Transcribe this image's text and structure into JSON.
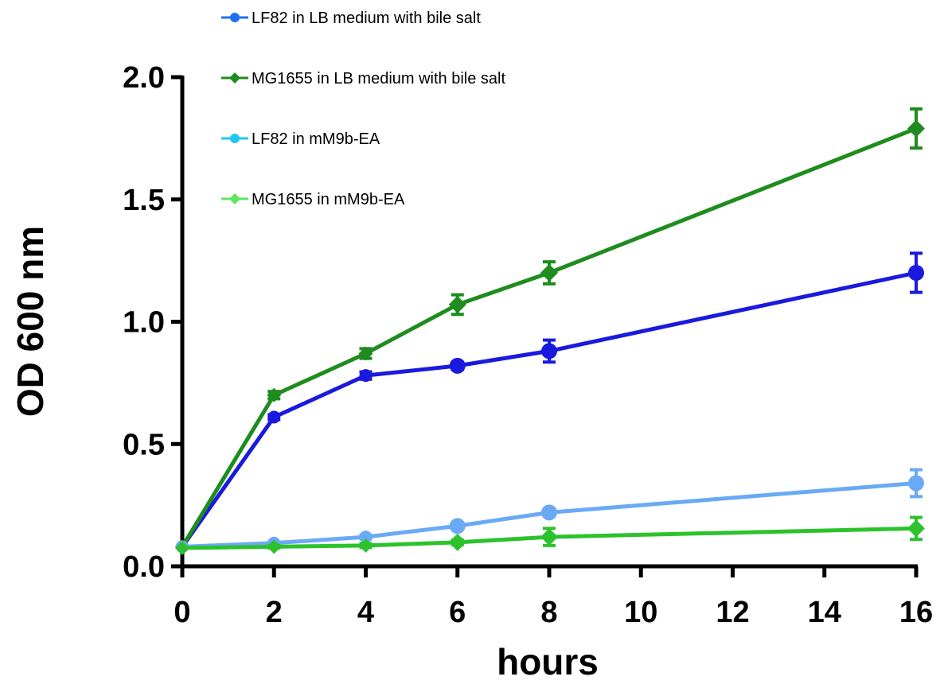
{
  "chart_data": {
    "type": "line",
    "title": "",
    "xlabel": "hours",
    "ylabel": "OD 600 nm",
    "xlim": [
      0,
      16
    ],
    "ylim": [
      0,
      2.0
    ],
    "x_ticks": [
      0,
      2,
      4,
      6,
      8,
      10,
      12,
      14,
      16
    ],
    "x_tick_labels": [
      "0",
      "2",
      "4",
      "6",
      "8",
      "10",
      "12",
      "14",
      "16"
    ],
    "y_ticks": [
      0,
      0.5,
      1.0,
      1.5,
      2.0
    ],
    "y_tick_labels": [
      "0.0",
      "0.5",
      "1.0",
      "1.5",
      "2.0"
    ],
    "grid": false,
    "legend_position": "top-left",
    "x": [
      0,
      2,
      4,
      6,
      8,
      16
    ],
    "series": [
      {
        "name": "LF82 in LB medium with bile salt",
        "color": "#1a1adf",
        "legend_color": "#1e6ff0",
        "marker": "circle",
        "values": [
          0.08,
          0.61,
          0.78,
          0.82,
          0.88,
          1.2
        ],
        "errors": [
          0.0,
          0.01,
          0.015,
          0.015,
          0.045,
          0.08
        ]
      },
      {
        "name": "MG1655 in LB medium with bile salt",
        "color": "#1e8c1e",
        "legend_color": "#1e8c1e",
        "marker": "diamond",
        "values": [
          0.08,
          0.7,
          0.87,
          1.07,
          1.2,
          1.79
        ],
        "errors": [
          0.0,
          0.015,
          0.02,
          0.04,
          0.045,
          0.08
        ]
      },
      {
        "name": "LF82 in mM9b-EA",
        "color": "#6aaaf5",
        "legend_color": "#1ec8f0",
        "marker": "circle",
        "values": [
          0.08,
          0.095,
          0.12,
          0.165,
          0.22,
          0.34
        ],
        "errors": [
          0.0,
          0.005,
          0.008,
          0.01,
          0.015,
          0.055
        ]
      },
      {
        "name": "MG1655 in mM9b-EA",
        "color": "#2cc22c",
        "legend_color": "#5ee65e",
        "marker": "diamond",
        "values": [
          0.075,
          0.08,
          0.085,
          0.098,
          0.12,
          0.155
        ],
        "errors": [
          0.0,
          0.005,
          0.008,
          0.01,
          0.035,
          0.045
        ]
      }
    ]
  }
}
